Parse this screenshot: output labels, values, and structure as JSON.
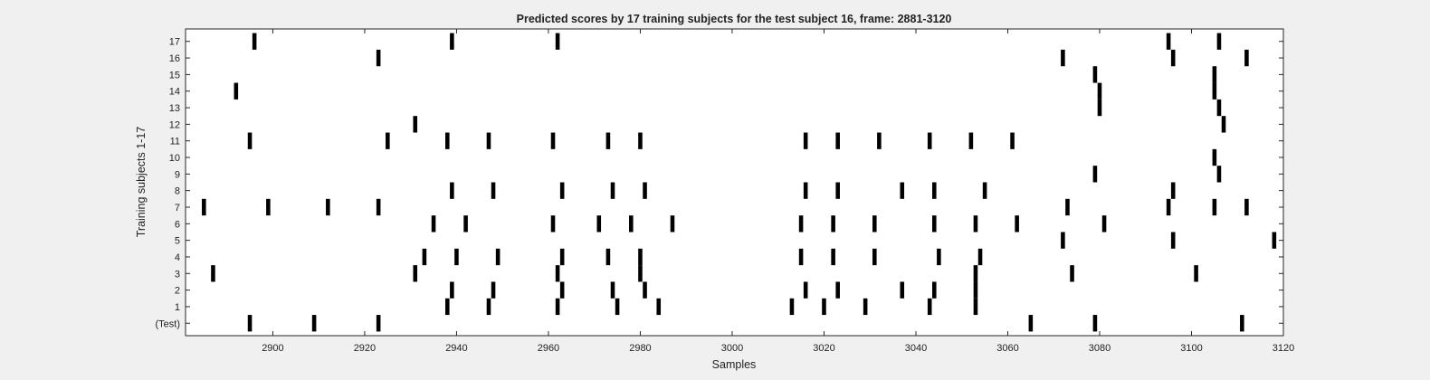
{
  "chart_data": {
    "type": "raster",
    "title": "Predicted scores by 17 training subjects for the test subject 16, frame: 2881-3120",
    "xlabel": "Samples",
    "ylabel": "Training subjects 1-17",
    "xlim": [
      2881,
      3120
    ],
    "x_ticks": [
      2900,
      2920,
      2940,
      2960,
      2980,
      3000,
      3020,
      3040,
      3060,
      3080,
      3100,
      3120
    ],
    "y_ticks": [
      "(Test)",
      "1",
      "2",
      "3",
      "4",
      "5",
      "6",
      "7",
      "8",
      "9",
      "10",
      "11",
      "12",
      "13",
      "14",
      "15",
      "16",
      "17"
    ],
    "mark_color": "#000000",
    "rows": [
      {
        "label": "(Test)",
        "events": [
          {
            "x": 2895,
            "w": 1
          },
          {
            "x": 2909,
            "w": 1
          },
          {
            "x": 2923,
            "w": 1
          },
          {
            "x": 3065,
            "w": 1
          },
          {
            "x": 3079,
            "w": 1
          },
          {
            "x": 3111,
            "w": 1
          }
        ]
      },
      {
        "label": "1",
        "events": [
          {
            "x": 2938,
            "w": 1
          },
          {
            "x": 2947,
            "w": 1
          },
          {
            "x": 2962,
            "w": 1
          },
          {
            "x": 2975,
            "w": 1
          },
          {
            "x": 2984,
            "w": 1
          },
          {
            "x": 3013,
            "w": 1
          },
          {
            "x": 3020,
            "w": 1
          },
          {
            "x": 3029,
            "w": 1
          },
          {
            "x": 3043,
            "w": 1
          },
          {
            "x": 3053,
            "w": 1
          }
        ]
      },
      {
        "label": "2",
        "events": [
          {
            "x": 2939,
            "w": 1
          },
          {
            "x": 2948,
            "w": 1
          },
          {
            "x": 2963,
            "w": 1
          },
          {
            "x": 2974,
            "w": 1
          },
          {
            "x": 2981,
            "w": 1
          },
          {
            "x": 3016,
            "w": 1
          },
          {
            "x": 3023,
            "w": 1
          },
          {
            "x": 3037,
            "w": 1
          },
          {
            "x": 3044,
            "w": 1
          },
          {
            "x": 3053,
            "w": 1
          }
        ]
      },
      {
        "label": "3",
        "events": [
          {
            "x": 2887,
            "w": 1
          },
          {
            "x": 2931,
            "w": 1
          },
          {
            "x": 2962,
            "w": 1
          },
          {
            "x": 2980,
            "w": 1
          },
          {
            "x": 3053,
            "w": 1
          },
          {
            "x": 3074,
            "w": 1
          },
          {
            "x": 3101,
            "w": 1
          }
        ]
      },
      {
        "label": "4",
        "events": [
          {
            "x": 2933,
            "w": 1
          },
          {
            "x": 2940,
            "w": 1
          },
          {
            "x": 2949,
            "w": 1
          },
          {
            "x": 2963,
            "w": 1
          },
          {
            "x": 2973,
            "w": 1
          },
          {
            "x": 2980,
            "w": 1
          },
          {
            "x": 3015,
            "w": 1
          },
          {
            "x": 3022,
            "w": 1
          },
          {
            "x": 3031,
            "w": 1
          },
          {
            "x": 3045,
            "w": 1
          },
          {
            "x": 3054,
            "w": 1
          }
        ]
      },
      {
        "label": "5",
        "events": [
          {
            "x": 3072,
            "w": 1
          },
          {
            "x": 3096,
            "w": 1
          },
          {
            "x": 3118,
            "w": 1
          }
        ]
      },
      {
        "label": "6",
        "events": [
          {
            "x": 2935,
            "w": 1
          },
          {
            "x": 2942,
            "w": 1
          },
          {
            "x": 2961,
            "w": 1
          },
          {
            "x": 2971,
            "w": 1
          },
          {
            "x": 2978,
            "w": 1
          },
          {
            "x": 2987,
            "w": 1
          },
          {
            "x": 3015,
            "w": 1
          },
          {
            "x": 3022,
            "w": 1
          },
          {
            "x": 3031,
            "w": 1
          },
          {
            "x": 3044,
            "w": 1
          },
          {
            "x": 3053,
            "w": 1
          },
          {
            "x": 3062,
            "w": 1
          },
          {
            "x": 3081,
            "w": 1
          }
        ]
      },
      {
        "label": "7",
        "events": [
          {
            "x": 2885,
            "w": 1
          },
          {
            "x": 2899,
            "w": 1
          },
          {
            "x": 2912,
            "w": 1
          },
          {
            "x": 2923,
            "w": 1
          },
          {
            "x": 3073,
            "w": 1
          },
          {
            "x": 3095,
            "w": 1
          },
          {
            "x": 3105,
            "w": 1
          },
          {
            "x": 3112,
            "w": 1
          }
        ]
      },
      {
        "label": "8",
        "events": [
          {
            "x": 2939,
            "w": 1
          },
          {
            "x": 2948,
            "w": 1
          },
          {
            "x": 2963,
            "w": 1
          },
          {
            "x": 2974,
            "w": 1
          },
          {
            "x": 2981,
            "w": 1
          },
          {
            "x": 3016,
            "w": 1
          },
          {
            "x": 3023,
            "w": 1
          },
          {
            "x": 3037,
            "w": 1
          },
          {
            "x": 3044,
            "w": 1
          },
          {
            "x": 3055,
            "w": 1
          },
          {
            "x": 3096,
            "w": 1
          }
        ]
      },
      {
        "label": "9",
        "events": [
          {
            "x": 3079,
            "w": 1
          },
          {
            "x": 3106,
            "w": 1
          }
        ]
      },
      {
        "label": "10",
        "events": [
          {
            "x": 3105,
            "w": 1
          }
        ]
      },
      {
        "label": "11",
        "events": [
          {
            "x": 2895,
            "w": 1
          },
          {
            "x": 2925,
            "w": 1
          },
          {
            "x": 2938,
            "w": 1
          },
          {
            "x": 2947,
            "w": 1
          },
          {
            "x": 2961,
            "w": 1
          },
          {
            "x": 2973,
            "w": 1
          },
          {
            "x": 2980,
            "w": 1
          },
          {
            "x": 3016,
            "w": 1
          },
          {
            "x": 3023,
            "w": 1
          },
          {
            "x": 3032,
            "w": 1
          },
          {
            "x": 3043,
            "w": 1
          },
          {
            "x": 3052,
            "w": 1
          },
          {
            "x": 3061,
            "w": 1
          }
        ]
      },
      {
        "label": "12",
        "events": [
          {
            "x": 2931,
            "w": 1
          },
          {
            "x": 3107,
            "w": 1
          }
        ]
      },
      {
        "label": "13",
        "events": [
          {
            "x": 3080,
            "w": 1
          },
          {
            "x": 3106,
            "w": 1
          }
        ]
      },
      {
        "label": "14",
        "events": [
          {
            "x": 2892,
            "w": 1
          },
          {
            "x": 3080,
            "w": 1
          },
          {
            "x": 3105,
            "w": 1
          }
        ]
      },
      {
        "label": "15",
        "events": [
          {
            "x": 3079,
            "w": 1
          },
          {
            "x": 3105,
            "w": 1
          }
        ]
      },
      {
        "label": "16",
        "events": [
          {
            "x": 2923,
            "w": 1
          },
          {
            "x": 3072,
            "w": 1
          },
          {
            "x": 3096,
            "w": 1
          },
          {
            "x": 3112,
            "w": 1
          }
        ]
      },
      {
        "label": "17",
        "events": [
          {
            "x": 2896,
            "w": 1
          },
          {
            "x": 2939,
            "w": 1
          },
          {
            "x": 2962,
            "w": 1
          },
          {
            "x": 3095,
            "w": 1
          },
          {
            "x": 3106,
            "w": 1
          }
        ]
      }
    ]
  }
}
